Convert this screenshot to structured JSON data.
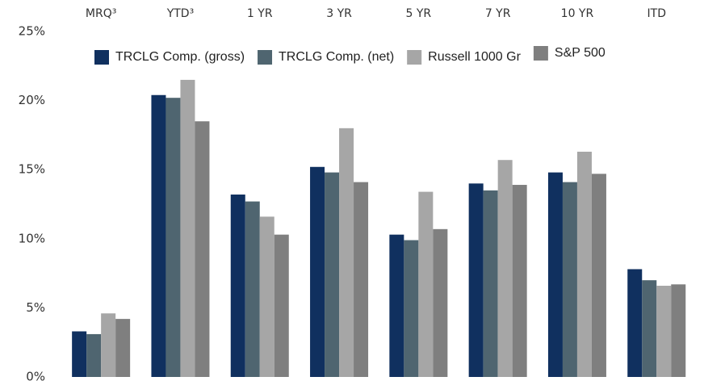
{
  "chart_data": {
    "type": "bar",
    "categories": [
      "MRQ³",
      "YTD³",
      "1 YR",
      "3 YR",
      "5 YR",
      "7 YR",
      "10 YR",
      "ITD"
    ],
    "series": [
      {
        "name": "TRCLG Comp. (gross)",
        "color": "#10305f",
        "values": [
          3.3,
          20.4,
          13.2,
          15.2,
          10.3,
          14.0,
          14.8,
          7.8
        ]
      },
      {
        "name": "TRCLG Comp. (net)",
        "color": "#4f6570",
        "values": [
          3.1,
          20.2,
          12.7,
          14.8,
          9.9,
          13.5,
          14.1,
          7.0
        ]
      },
      {
        "name": "Russell 1000 Gr",
        "color": "#a6a6a6",
        "values": [
          4.6,
          21.5,
          11.6,
          18.0,
          13.4,
          15.7,
          16.3,
          6.6
        ]
      },
      {
        "name": "S&P 500",
        "color": "#7f7f7f",
        "values": [
          4.2,
          18.5,
          10.3,
          14.1,
          10.7,
          13.9,
          14.7,
          6.7
        ]
      }
    ],
    "ylim": [
      0,
      25
    ],
    "yticks": [
      {
        "value": 0,
        "label": "0%"
      },
      {
        "value": 5,
        "label": "5%"
      },
      {
        "value": 10,
        "label": "10%"
      },
      {
        "value": 15,
        "label": "15%"
      },
      {
        "value": 20,
        "label": "20%"
      },
      {
        "value": 25,
        "label": "25%"
      }
    ],
    "legend": "top"
  }
}
